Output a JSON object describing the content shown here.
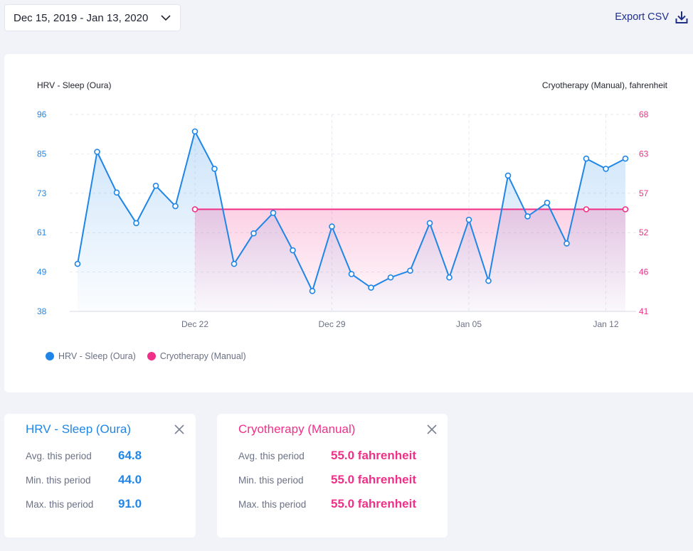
{
  "header": {
    "date_range": "Dec 15, 2019 - Jan 13, 2020",
    "export_label": "Export CSV"
  },
  "colors": {
    "hrv": "#1f86e8",
    "cryo": "#ef2f88",
    "accent": "#1f2f8a"
  },
  "chart_data": {
    "type": "line",
    "left_axis_label": "HRV - Sleep (Oura)",
    "right_axis_label": "Cryotherapy (Manual), fahrenheit",
    "x": [
      "Dec 16",
      "Dec 17",
      "Dec 18",
      "Dec 19",
      "Dec 20",
      "Dec 21",
      "Dec 22",
      "Dec 23",
      "Dec 24",
      "Dec 25",
      "Dec 26",
      "Dec 27",
      "Dec 28",
      "Dec 29",
      "Dec 30",
      "Dec 31",
      "Jan 01",
      "Jan 02",
      "Jan 03",
      "Jan 04",
      "Jan 05",
      "Jan 06",
      "Jan 07",
      "Jan 08",
      "Jan 09",
      "Jan 10",
      "Jan 11",
      "Jan 12",
      "Jan 13"
    ],
    "x_ticks": [
      "Dec 22",
      "Dec 29",
      "Jan 05",
      "Jan 12"
    ],
    "left_ticks": [
      96,
      85,
      73,
      61,
      49,
      38
    ],
    "right_ticks": [
      68,
      63,
      57,
      52,
      46,
      41
    ],
    "left_range": [
      38,
      96
    ],
    "right_range": [
      41,
      68
    ],
    "series": [
      {
        "name": "HRV - Sleep (Oura)",
        "axis": "left",
        "values": [
          52,
          85,
          73,
          64,
          75,
          69,
          91,
          80,
          52,
          61,
          67,
          56,
          44,
          63,
          49,
          45,
          48,
          50,
          64,
          48,
          65,
          47,
          78,
          66,
          70,
          58,
          83,
          80,
          83
        ]
      },
      {
        "name": "Cryotherapy (Manual)",
        "axis": "right",
        "values": [
          null,
          null,
          null,
          null,
          null,
          null,
          55,
          null,
          null,
          null,
          null,
          null,
          null,
          null,
          null,
          null,
          null,
          null,
          null,
          null,
          null,
          null,
          null,
          null,
          null,
          null,
          55,
          null,
          55
        ]
      }
    ],
    "grid": true,
    "legend": "bottom-left"
  },
  "stats": {
    "hrv": {
      "title": "HRV - Sleep (Oura)",
      "avg_label": "Avg. this period",
      "avg": "64.8",
      "min_label": "Min. this period",
      "min": "44.0",
      "max_label": "Max. this period",
      "max": "91.0"
    },
    "cryo": {
      "title": "Cryotherapy (Manual)",
      "avg_label": "Avg. this period",
      "avg": "55.0 fahrenheit",
      "min_label": "Min. this period",
      "min": "55.0 fahrenheit",
      "max_label": "Max. this period",
      "max": "55.0 fahrenheit"
    }
  }
}
